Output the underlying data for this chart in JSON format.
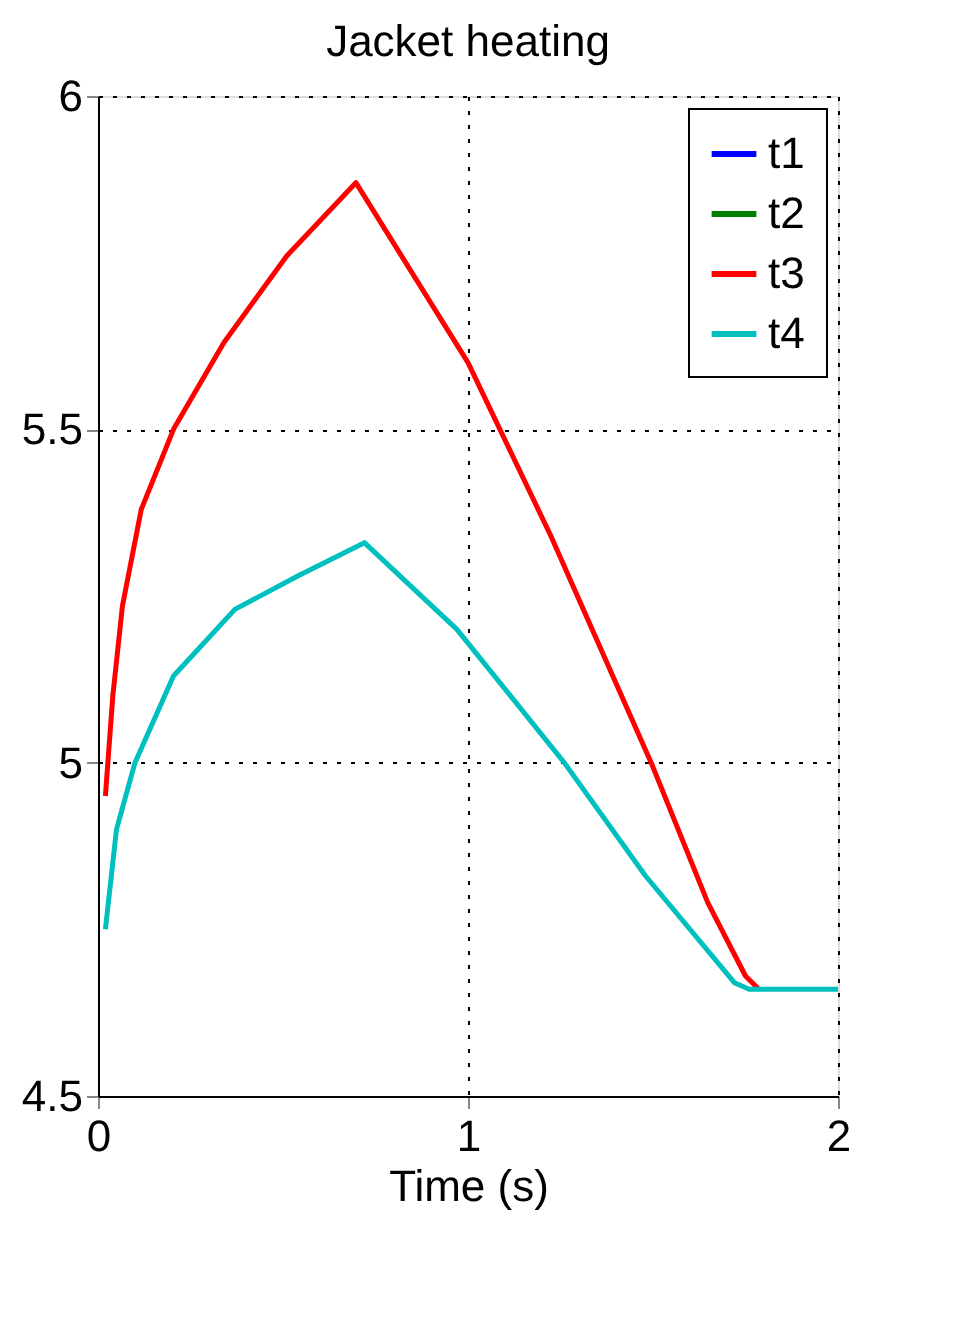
{
  "chart_data": {
    "type": "line",
    "title": "Jacket heating",
    "xlabel": "Time (s)",
    "xlim": [
      0,
      2
    ],
    "xticks": [
      0,
      1,
      2
    ],
    "ylim": [
      4.5,
      6
    ],
    "yticks": [
      4.5,
      5,
      5.5,
      6
    ],
    "grid": true,
    "legend": "top right",
    "line_style": "solid",
    "marker": "none",
    "series": [
      {
        "name": "t1",
        "color": "#0000ff"
      },
      {
        "name": "t2",
        "color": "#008000"
      },
      {
        "name": "t3",
        "color": "#ff0000",
        "x": [
          0.02,
          0.04,
          0.066,
          0.117,
          0.204,
          0.34,
          0.51,
          0.697,
          1.0,
          1.224,
          1.495,
          1.648,
          1.75,
          1.786
        ],
        "values": [
          4.95,
          5.1,
          5.235,
          5.38,
          5.5,
          5.63,
          5.76,
          5.87,
          5.6,
          5.34,
          5.0,
          4.79,
          4.68,
          4.66
        ]
      },
      {
        "name": "t4",
        "color": "#00bfbf",
        "x": [
          0.02,
          0.05,
          0.1,
          0.204,
          0.37,
          0.54,
          0.72,
          0.97,
          1.26,
          1.48,
          1.72,
          1.76,
          2.0
        ],
        "values": [
          4.75,
          4.9,
          5.0,
          5.13,
          5.23,
          5.28,
          5.33,
          5.2,
          5.0,
          4.83,
          4.67,
          4.66,
          4.66
        ]
      }
    ]
  }
}
